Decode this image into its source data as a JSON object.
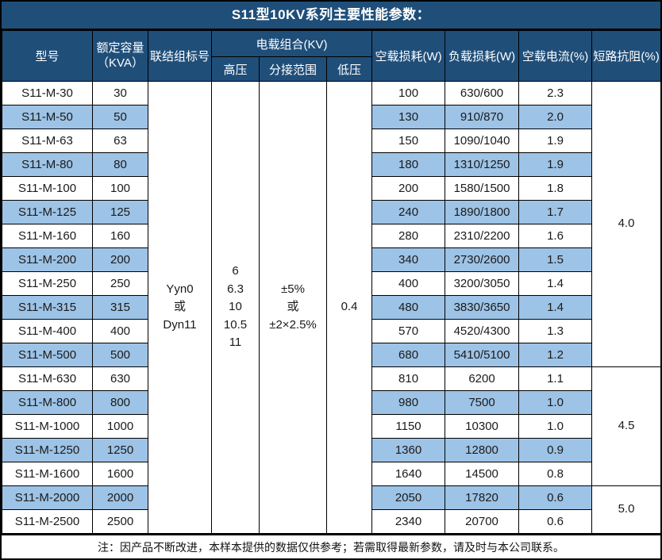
{
  "title": "S11型10KV系列主要性能参数：",
  "header": {
    "model": "型号",
    "capacity": "额定容量\n（KVA）",
    "connection": "联结组标号",
    "voltage_group": "电载组合(KV)",
    "hv": "高压",
    "tap_range": "分接范围",
    "lv": "低压",
    "no_load_loss": "空载损耗(W)",
    "load_loss": "负载损耗(W)",
    "no_load_current": "空载电流(%)",
    "impedance": "短路抗阻(%)"
  },
  "merged_cells": {
    "connection": "Yyn0\n或\nDyn11",
    "hv": "6\n6.3\n10\n10.5\n11",
    "tap_range": "±5%\n或\n±2×2.5%",
    "lv": "0.4"
  },
  "rows": [
    {
      "model": "S11-M-30",
      "capacity": "30",
      "no_load_loss": "100",
      "load_loss": "630/600",
      "no_load_current": "2.3"
    },
    {
      "model": "S11-M-50",
      "capacity": "50",
      "no_load_loss": "130",
      "load_loss": "910/870",
      "no_load_current": "2.0"
    },
    {
      "model": "S11-M-63",
      "capacity": "63",
      "no_load_loss": "150",
      "load_loss": "1090/1040",
      "no_load_current": "1.9"
    },
    {
      "model": "S11-M-80",
      "capacity": "80",
      "no_load_loss": "180",
      "load_loss": "1310/1250",
      "no_load_current": "1.9"
    },
    {
      "model": "S11-M-100",
      "capacity": "100",
      "no_load_loss": "200",
      "load_loss": "1580/1500",
      "no_load_current": "1.8"
    },
    {
      "model": "S11-M-125",
      "capacity": "125",
      "no_load_loss": "240",
      "load_loss": "1890/1800",
      "no_load_current": "1.7"
    },
    {
      "model": "S11-M-160",
      "capacity": "160",
      "no_load_loss": "280",
      "load_loss": "2310/2200",
      "no_load_current": "1.6"
    },
    {
      "model": "S11-M-200",
      "capacity": "200",
      "no_load_loss": "340",
      "load_loss": "2730/2600",
      "no_load_current": "1.5"
    },
    {
      "model": "S11-M-250",
      "capacity": "250",
      "no_load_loss": "400",
      "load_loss": "3200/3050",
      "no_load_current": "1.4"
    },
    {
      "model": "S11-M-315",
      "capacity": "315",
      "no_load_loss": "480",
      "load_loss": "3830/3650",
      "no_load_current": "1.4"
    },
    {
      "model": "S11-M-400",
      "capacity": "400",
      "no_load_loss": "570",
      "load_loss": "4520/4300",
      "no_load_current": "1.3"
    },
    {
      "model": "S11-M-500",
      "capacity": "500",
      "no_load_loss": "680",
      "load_loss": "5410/5100",
      "no_load_current": "1.2"
    },
    {
      "model": "S11-M-630",
      "capacity": "630",
      "no_load_loss": "810",
      "load_loss": "6200",
      "no_load_current": "1.1"
    },
    {
      "model": "S11-M-800",
      "capacity": "800",
      "no_load_loss": "980",
      "load_loss": "7500",
      "no_load_current": "1.0"
    },
    {
      "model": "S11-M-1000",
      "capacity": "1000",
      "no_load_loss": "1150",
      "load_loss": "10300",
      "no_load_current": "1.0"
    },
    {
      "model": "S11-M-1250",
      "capacity": "1250",
      "no_load_loss": "1360",
      "load_loss": "12800",
      "no_load_current": "0.9"
    },
    {
      "model": "S11-M-1600",
      "capacity": "1600",
      "no_load_loss": "1640",
      "load_loss": "14500",
      "no_load_current": "0.8"
    },
    {
      "model": "S11-M-2000",
      "capacity": "2000",
      "no_load_loss": "2050",
      "load_loss": "17820",
      "no_load_current": "0.6"
    },
    {
      "model": "S11-M-2500",
      "capacity": "2500",
      "no_load_loss": "2340",
      "load_loss": "20700",
      "no_load_current": "0.6"
    }
  ],
  "impedance_groups": [
    {
      "value": "4.0",
      "rowspan": 12
    },
    {
      "value": "4.5",
      "rowspan": 5
    },
    {
      "value": "5.0",
      "rowspan": 2
    }
  ],
  "note": "注：因产品不断改进，本样本提供的数据仅供参考；若需取得最新参数，请及时与本公司联系。",
  "colors": {
    "header_bg": "#1F4E79",
    "alt_row_bg": "#9DC3E6",
    "border": "#000000"
  }
}
